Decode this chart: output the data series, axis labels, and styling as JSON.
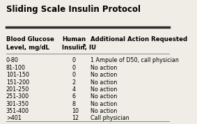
{
  "title": "Sliding Scale Insulin Protocol",
  "col1_header_line1": "Blood Glucose",
  "col1_header_line2": "Level, mg/dL",
  "col2_header_line1": "Human",
  "col2_header_line2": "Insulin, IU",
  "col2_superscript": "a",
  "col3_header": "Additional Action Requested",
  "rows": [
    [
      "0-80",
      "0",
      "1 Ampule of D50, call physician"
    ],
    [
      "81-100",
      "0",
      "No action"
    ],
    [
      "101-150",
      "0",
      "No action"
    ],
    [
      "151-200",
      "2",
      "No action"
    ],
    [
      "201-250",
      "4",
      "No action"
    ],
    [
      "251-300",
      "6",
      "No action"
    ],
    [
      "301-350",
      "8",
      "No action"
    ],
    [
      "351-400",
      "10",
      "No action"
    ],
    [
      ">401",
      "12",
      "Call physician"
    ]
  ],
  "bg_color": "#f0ede6",
  "thick_line_color": "#2b2b2b",
  "thin_line_color": "#888888",
  "header_fontsize": 6.2,
  "title_fontsize": 8.5,
  "cell_fontsize": 5.8
}
